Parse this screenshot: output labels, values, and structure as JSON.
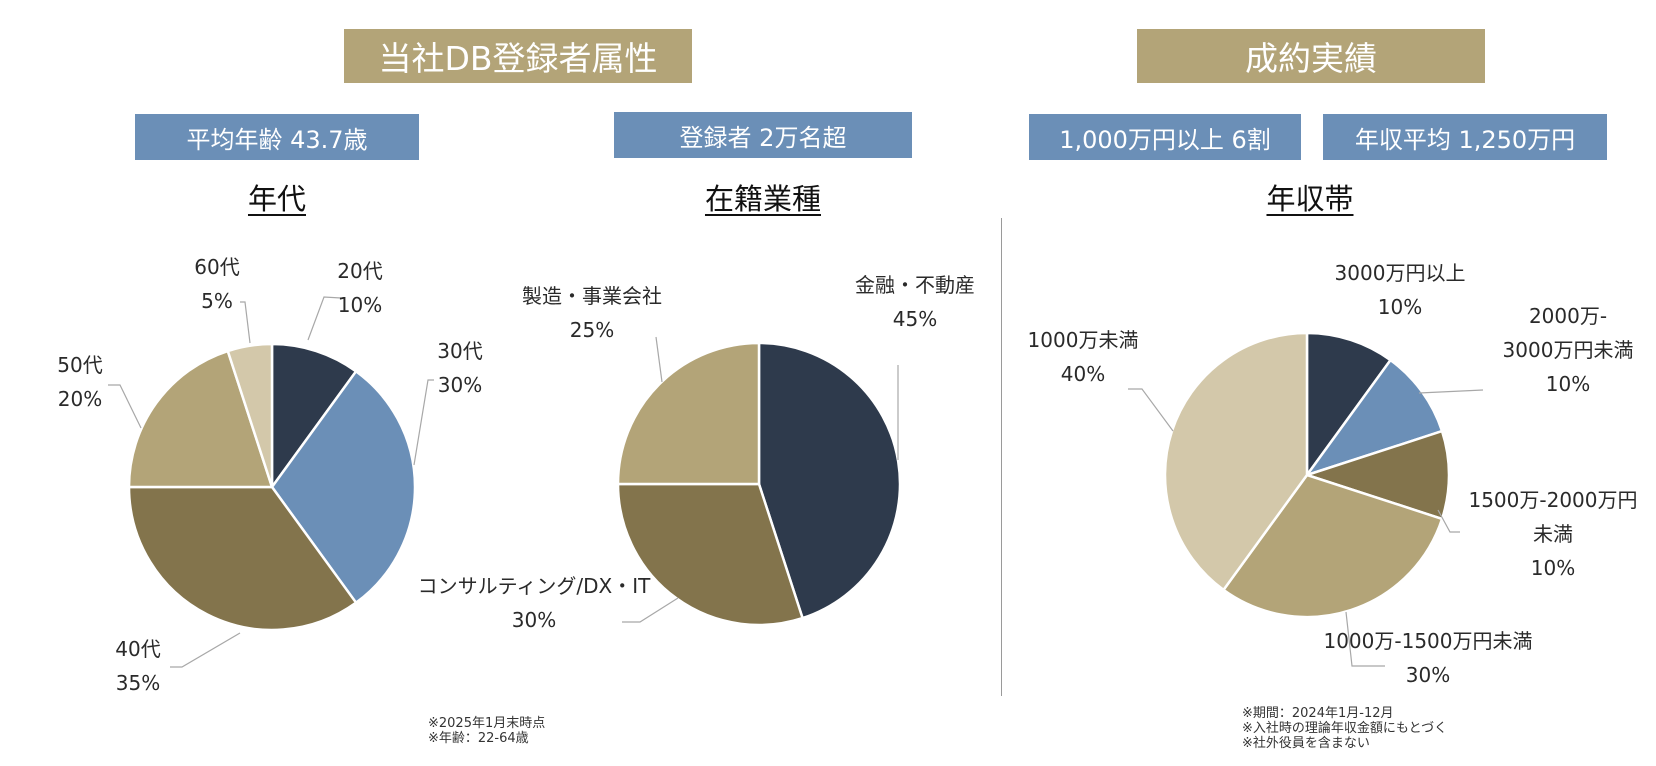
{
  "left_section": {
    "header": "当社DB登録者属性",
    "badges": [
      "平均年齢 43.7歳",
      "登録者 2万名超"
    ],
    "notes": [
      "※2025年1月末時点",
      "※年齢：22-64歳"
    ]
  },
  "right_section": {
    "header": "成約実績",
    "badges": [
      "1,000万円以上 6割",
      "年収平均 1,250万円"
    ],
    "notes": [
      "※期間：2024年1月-12月",
      "※入社時の理論年収金額にもとづく",
      "※社外役員を含まない"
    ]
  },
  "colors": {
    "navy": "#2e3a4c",
    "blue": "#6b8fb7",
    "olive": "#83744c",
    "tan": "#b3a478",
    "beige": "#d3c8aa",
    "header_bg": "#b3a478",
    "badge_bg": "#6b8fb7"
  },
  "chart_data": [
    {
      "type": "pie",
      "title": "年代",
      "slices": [
        {
          "label": "20代",
          "value": 10,
          "display": "10%",
          "color": "#2e3a4c"
        },
        {
          "label": "30代",
          "value": 30,
          "display": "30%",
          "color": "#6b8fb7"
        },
        {
          "label": "40代",
          "value": 35,
          "display": "35%",
          "color": "#83744c"
        },
        {
          "label": "50代",
          "value": 20,
          "display": "20%",
          "color": "#b3a478"
        },
        {
          "label": "60代",
          "value": 5,
          "display": "5%",
          "color": "#d3c8aa"
        }
      ]
    },
    {
      "type": "pie",
      "title": "在籍業種",
      "slices": [
        {
          "label": "金融・不動産",
          "value": 45,
          "display": "45%",
          "color": "#2e3a4c"
        },
        {
          "label": "コンサルティング/DX・IT",
          "value": 30,
          "display": "30%",
          "color": "#83744c"
        },
        {
          "label": "製造・事業会社",
          "value": 25,
          "display": "25%",
          "color": "#b3a478"
        }
      ]
    },
    {
      "type": "pie",
      "title": "年収帯",
      "slices": [
        {
          "label": "3000万円以上",
          "value": 10,
          "display": "10%",
          "color": "#2e3a4c"
        },
        {
          "label": "2000万-3000万円未満",
          "value": 10,
          "display": "10%",
          "color": "#6b8fb7"
        },
        {
          "label": "1500万-2000万円未満",
          "value": 10,
          "display": "10%",
          "color": "#83744c"
        },
        {
          "label": "1000万-1500万円未満",
          "value": 30,
          "display": "30%",
          "color": "#b3a478"
        },
        {
          "label": "1000万未満",
          "value": 40,
          "display": "40%",
          "color": "#d3c8aa"
        }
      ]
    }
  ]
}
